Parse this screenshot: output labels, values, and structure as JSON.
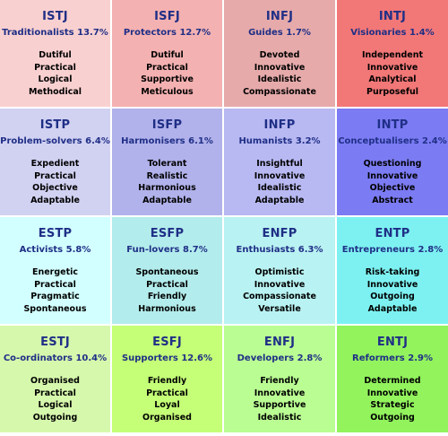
{
  "colors": {
    "row1": [
      "#f9d0d0",
      "#f4b1b1",
      "#e6aaaa",
      "#f27777"
    ],
    "row2": [
      "#d1d1f2",
      "#b1b1eb",
      "#b8b8f2",
      "#7b7bf3"
    ],
    "row3": [
      "#d2ffff",
      "#b3ecec",
      "#b9f2f2",
      "#7df1f1"
    ],
    "row4": [
      "#d6f8ac",
      "#c4ff77",
      "#bafd93",
      "#92f35d"
    ],
    "title_text": "#1f2f86"
  },
  "cells": [
    {
      "code": "ISTJ",
      "group": "Traditionalists",
      "pct": "13.7%",
      "traits": [
        "Dutiful",
        "Practical",
        "Logical",
        "Methodical"
      ]
    },
    {
      "code": "ISFJ",
      "group": "Protectors",
      "pct": "12.7%",
      "traits": [
        "Dutiful",
        "Practical",
        "Supportive",
        "Meticulous"
      ]
    },
    {
      "code": "INFJ",
      "group": "Guides",
      "pct": "1.7%",
      "traits": [
        "Devoted",
        "Innovative",
        "Idealistic",
        "Compassionate"
      ]
    },
    {
      "code": "INTJ",
      "group": "Visionaries",
      "pct": "1.4%",
      "traits": [
        "Independent",
        "Innovative",
        "Analytical",
        "Purposeful"
      ]
    },
    {
      "code": "ISTP",
      "group": "Problem-solvers",
      "pct": "6.4%",
      "traits": [
        "Expedient",
        "Practical",
        "Objective",
        "Adaptable"
      ]
    },
    {
      "code": "ISFP",
      "group": "Harmonisers",
      "pct": "6.1%",
      "traits": [
        "Tolerant",
        "Realistic",
        "Harmonious",
        "Adaptable"
      ]
    },
    {
      "code": "INFP",
      "group": "Humanists",
      "pct": "3.2%",
      "traits": [
        "Insightful",
        "Innovative",
        "Idealistic",
        "Adaptable"
      ]
    },
    {
      "code": "INTP",
      "group": "Conceptualisers",
      "pct": "2.4%",
      "traits": [
        "Questioning",
        "Innovative",
        "Objective",
        "Abstract"
      ]
    },
    {
      "code": "ESTP",
      "group": "Activists",
      "pct": "5.8%",
      "traits": [
        "Energetic",
        "Practical",
        "Pragmatic",
        "Spontaneous"
      ]
    },
    {
      "code": "ESFP",
      "group": "Fun-lovers",
      "pct": "8.7%",
      "traits": [
        "Spontaneous",
        "Practical",
        "Friendly",
        "Harmonious"
      ]
    },
    {
      "code": "ENFP",
      "group": "Enthusiasts",
      "pct": "6.3%",
      "traits": [
        "Optimistic",
        "Innovative",
        "Compassionate",
        "Versatile"
      ]
    },
    {
      "code": "ENTP",
      "group": "Entrepreneurs",
      "pct": "2.8%",
      "traits": [
        "Risk-taking",
        "Innovative",
        "Outgoing",
        "Adaptable"
      ]
    },
    {
      "code": "ESTJ",
      "group": "Co-ordinators",
      "pct": "10.4%",
      "traits": [
        "Organised",
        "Practical",
        "Logical",
        "Outgoing"
      ]
    },
    {
      "code": "ESFJ",
      "group": "Supporters",
      "pct": "12.6%",
      "traits": [
        "Friendly",
        "Practical",
        "Loyal",
        "Organised"
      ]
    },
    {
      "code": "ENFJ",
      "group": "Developers",
      "pct": "2.8%",
      "traits": [
        "Friendly",
        "Innovative",
        "Supportive",
        "Idealistic"
      ]
    },
    {
      "code": "ENTJ",
      "group": "Reformers",
      "pct": "2.9%",
      "traits": [
        "Determined",
        "Innovative",
        "Strategic",
        "Outgoing"
      ]
    }
  ]
}
